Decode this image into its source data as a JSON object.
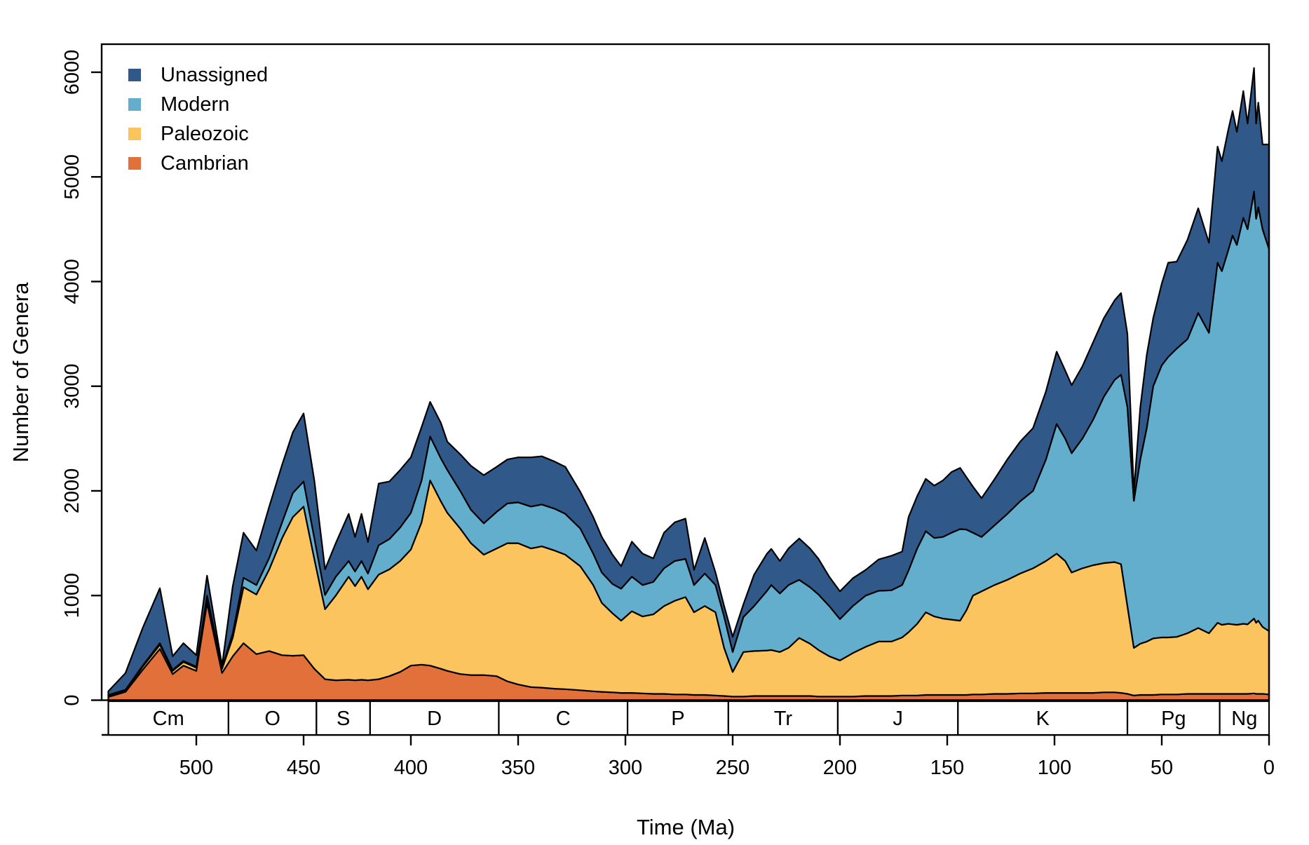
{
  "legend": {
    "entries": [
      {
        "label": "Unassigned",
        "color": "#30598A"
      },
      {
        "label": "Modern",
        "color": "#64AECD"
      },
      {
        "label": "Paleozoic",
        "color": "#FCC45F"
      },
      {
        "label": "Cambrian",
        "color": "#E2703A"
      }
    ]
  },
  "chart_data": {
    "type": "area",
    "stacked": true,
    "title": "",
    "xlabel": "Time (Ma)",
    "ylabel": "Number of Genera",
    "x_axis": {
      "label": "Time (Ma)",
      "unit": "Ma",
      "reversed": true,
      "range": [
        541,
        0
      ],
      "ticks": [
        500,
        450,
        400,
        350,
        300,
        250,
        200,
        150,
        100,
        50,
        0
      ]
    },
    "y_axis": {
      "label": "Number of Genera",
      "range": [
        0,
        6270
      ],
      "ticks": [
        0,
        1000,
        2000,
        3000,
        4000,
        5000,
        6000
      ]
    },
    "grid": false,
    "legend_position": "top-left",
    "series_order_bottom_to_top": [
      "Cambrian",
      "Paleozoic",
      "Modern",
      "Unassigned"
    ],
    "x": [
      541,
      533,
      525,
      517,
      511,
      506,
      500,
      495,
      488,
      483,
      478,
      472,
      466,
      460,
      455,
      450,
      445,
      440,
      435,
      429,
      426,
      423,
      420,
      415,
      410,
      405,
      400,
      395,
      391,
      386,
      383,
      377,
      372,
      366,
      360,
      355,
      350,
      344,
      339,
      333,
      328,
      321,
      315,
      311,
      306,
      302,
      297,
      292,
      287,
      282,
      277,
      272,
      268,
      263,
      258,
      254,
      250,
      245,
      240,
      234,
      232,
      228,
      224,
      219,
      214,
      210,
      205,
      200,
      194,
      188,
      182,
      176,
      171,
      168,
      164,
      160,
      156,
      152,
      148,
      144,
      141,
      138,
      134,
      128,
      122,
      116,
      110,
      104,
      99,
      95,
      92,
      87,
      82,
      77,
      72,
      69,
      66,
      63,
      60,
      57,
      54,
      50,
      47,
      43,
      38,
      33,
      28,
      24,
      22,
      19,
      17,
      15,
      12,
      10,
      7,
      6,
      5,
      3,
      0
    ],
    "series": [
      {
        "name": "Cambrian",
        "color": "#E2703A",
        "values": [
          30,
          80,
          290,
          490,
          250,
          330,
          280,
          930,
          260,
          420,
          545,
          440,
          470,
          430,
          425,
          430,
          300,
          200,
          190,
          195,
          190,
          195,
          190,
          200,
          230,
          270,
          330,
          340,
          330,
          300,
          280,
          250,
          240,
          240,
          230,
          180,
          150,
          125,
          120,
          110,
          105,
          95,
          85,
          80,
          75,
          70,
          70,
          65,
          60,
          60,
          55,
          55,
          50,
          50,
          45,
          40,
          35,
          35,
          40,
          40,
          40,
          40,
          40,
          40,
          40,
          35,
          35,
          35,
          35,
          40,
          40,
          40,
          45,
          45,
          45,
          50,
          50,
          50,
          50,
          50,
          50,
          55,
          55,
          60,
          60,
          65,
          65,
          70,
          70,
          70,
          70,
          70,
          70,
          75,
          75,
          70,
          60,
          45,
          50,
          50,
          50,
          55,
          55,
          55,
          60,
          60,
          60,
          60,
          60,
          60,
          60,
          60,
          60,
          60,
          65,
          60,
          60,
          60,
          55
        ]
      },
      {
        "name": "Paleozoic",
        "color": "#FCC45F",
        "values": [
          15,
          15,
          30,
          40,
          30,
          35,
          30,
          60,
          40,
          180,
          535,
          570,
          780,
          1120,
          1325,
          1420,
          1050,
          670,
          810,
          985,
          900,
          985,
          870,
          1000,
          1020,
          1060,
          1110,
          1360,
          1770,
          1600,
          1510,
          1390,
          1260,
          1150,
          1220,
          1320,
          1350,
          1325,
          1350,
          1320,
          1285,
          1185,
          1015,
          850,
          755,
          690,
          780,
          735,
          760,
          840,
          895,
          930,
          790,
          850,
          795,
          460,
          235,
          425,
          430,
          435,
          440,
          420,
          460,
          555,
          500,
          445,
          385,
          345,
          415,
          470,
          520,
          520,
          555,
          605,
          685,
          790,
          750,
          730,
          720,
          710,
          810,
          945,
          985,
          1040,
          1090,
          1145,
          1195,
          1260,
          1330,
          1260,
          1150,
          1190,
          1220,
          1235,
          1245,
          1230,
          840,
          455,
          490,
          510,
          540,
          545,
          545,
          550,
          580,
          630,
          580,
          680,
          660,
          670,
          665,
          660,
          670,
          665,
          715,
          680,
          700,
          640,
          605
        ]
      },
      {
        "name": "Modern",
        "color": "#64AECD",
        "values": [
          5,
          5,
          10,
          15,
          10,
          10,
          10,
          10,
          10,
          40,
          90,
          90,
          110,
          150,
          230,
          240,
          200,
          135,
          180,
          150,
          140,
          150,
          150,
          280,
          290,
          320,
          350,
          400,
          420,
          410,
          410,
          360,
          320,
          300,
          350,
          380,
          390,
          400,
          400,
          400,
          390,
          360,
          300,
          290,
          280,
          305,
          330,
          300,
          310,
          360,
          380,
          365,
          260,
          310,
          260,
          300,
          190,
          335,
          430,
          570,
          620,
          560,
          600,
          555,
          540,
          530,
          480,
          395,
          450,
          490,
          485,
          490,
          500,
          590,
          720,
          775,
          750,
          780,
          830,
          875,
          770,
          600,
          520,
          570,
          630,
          690,
          740,
          970,
          1240,
          1170,
          1140,
          1240,
          1390,
          1590,
          1740,
          1810,
          1900,
          1405,
          1760,
          2040,
          2410,
          2600,
          2680,
          2755,
          2810,
          3010,
          2870,
          3440,
          3380,
          3570,
          3715,
          3630,
          3880,
          3775,
          4080,
          3860,
          3950,
          3800,
          3650
        ]
      },
      {
        "name": "Unassigned",
        "color": "#30598A",
        "values": [
          35,
          160,
          360,
          525,
          130,
          170,
          110,
          190,
          20,
          450,
          430,
          330,
          490,
          550,
          580,
          650,
          550,
          245,
          320,
          450,
          330,
          450,
          300,
          590,
          550,
          550,
          530,
          510,
          330,
          340,
          270,
          350,
          420,
          460,
          430,
          420,
          430,
          470,
          460,
          450,
          450,
          350,
          350,
          340,
          280,
          215,
          335,
          300,
          225,
          340,
          370,
          385,
          145,
          340,
          120,
          100,
          145,
          120,
          300,
          355,
          345,
          310,
          350,
          395,
          370,
          340,
          280,
          265,
          265,
          245,
          300,
          330,
          320,
          510,
          500,
          500,
          500,
          540,
          580,
          585,
          500,
          440,
          370,
          440,
          520,
          570,
          600,
          650,
          690,
          650,
          650,
          690,
          740,
          750,
          760,
          780,
          700,
          85,
          500,
          700,
          650,
          780,
          900,
          830,
          950,
          1000,
          860,
          1110,
          1050,
          1150,
          1190,
          1080,
          1210,
          1010,
          1180,
          910,
          1000,
          810,
          1000
        ]
      }
    ],
    "period_bar": {
      "periods": [
        {
          "label": "Cm",
          "from": 541,
          "to": 485
        },
        {
          "label": "O",
          "from": 485,
          "to": 444
        },
        {
          "label": "S",
          "from": 444,
          "to": 419
        },
        {
          "label": "D",
          "from": 419,
          "to": 359
        },
        {
          "label": "C",
          "from": 359,
          "to": 299
        },
        {
          "label": "P",
          "from": 299,
          "to": 252
        },
        {
          "label": "Tr",
          "from": 252,
          "to": 201
        },
        {
          "label": "J",
          "from": 201,
          "to": 145
        },
        {
          "label": "K",
          "from": 145,
          "to": 66
        },
        {
          "label": "Pg",
          "from": 66,
          "to": 23
        },
        {
          "label": "Ng",
          "from": 23,
          "to": 0
        }
      ]
    }
  }
}
